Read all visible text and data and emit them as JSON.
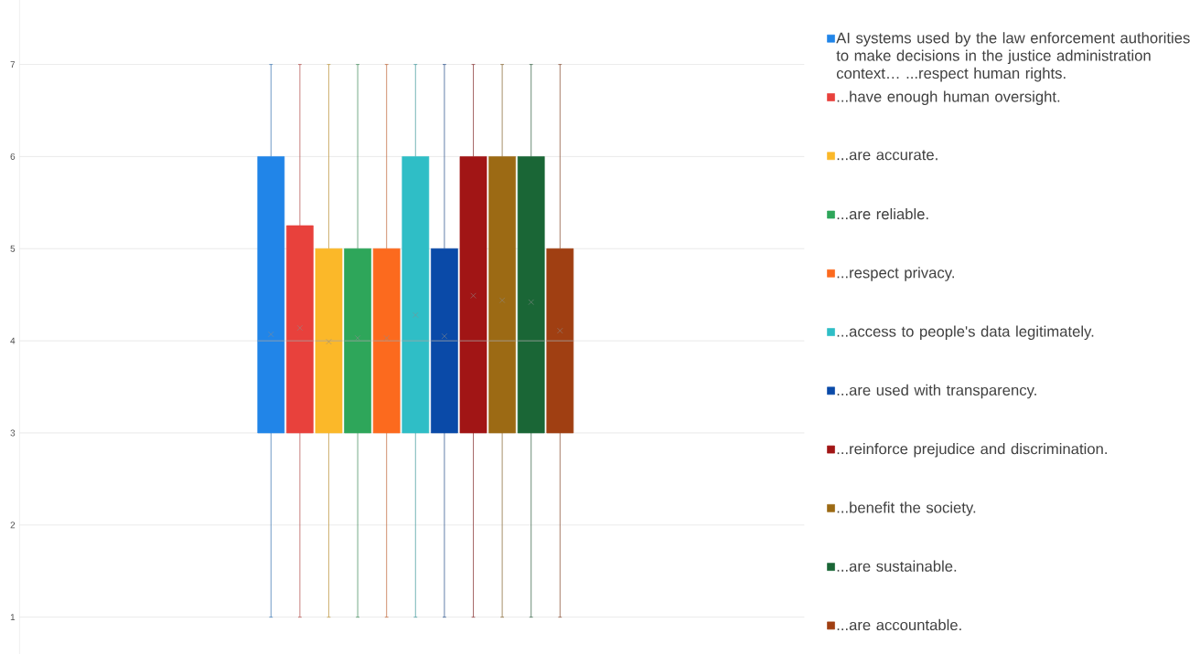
{
  "chart_data": {
    "type": "box",
    "categories": [
      null
    ],
    "series": [
      {
        "name": "AI systems used by the law enforcement authorities to make decisions in the justice administration context… ...respect human rights.",
        "color": "#2185e8",
        "boxes": [
          {
            "low": 1,
            "q1": 3,
            "median": 4,
            "q3": 6,
            "high": 7,
            "mean": 4.07
          }
        ]
      },
      {
        "name": "...have enough human oversight.",
        "color": "#e8413c",
        "boxes": [
          {
            "low": 1,
            "q1": 3,
            "median": 4,
            "q3": 5.25,
            "high": 7,
            "mean": 4.14
          }
        ]
      },
      {
        "name": "...are accurate.",
        "color": "#fbb829",
        "boxes": [
          {
            "low": 1,
            "q1": 3,
            "median": 4,
            "q3": 5,
            "high": 7,
            "mean": 3.99
          }
        ]
      },
      {
        "name": "...are reliable.",
        "color": "#2ea65a",
        "boxes": [
          {
            "low": 1,
            "q1": 3,
            "median": 4,
            "q3": 5,
            "high": 7,
            "mean": 4.03
          }
        ]
      },
      {
        "name": "...respect privacy.",
        "color": "#fc6a1e",
        "boxes": [
          {
            "low": 1,
            "q1": 3,
            "median": 4,
            "q3": 5,
            "high": 7,
            "mean": 4.03
          }
        ]
      },
      {
        "name": "...access to people's data legitimately.",
        "color": "#2fbec6",
        "boxes": [
          {
            "low": 1,
            "q1": 3,
            "median": 4,
            "q3": 6,
            "high": 7,
            "mean": 4.28
          }
        ]
      },
      {
        "name": "...are used with transparency.",
        "color": "#0a4aa8",
        "boxes": [
          {
            "low": 1,
            "q1": 3,
            "median": 4,
            "q3": 5,
            "high": 7,
            "mean": 4.05
          }
        ]
      },
      {
        "name": "...reinforce prejudice and discrimination.",
        "color": "#a11515",
        "boxes": [
          {
            "low": 1,
            "q1": 3,
            "median": 4,
            "q3": 6,
            "high": 7,
            "mean": 4.49
          }
        ]
      },
      {
        "name": "...benefit the society.",
        "color": "#9c6a14",
        "boxes": [
          {
            "low": 1,
            "q1": 3,
            "median": 4,
            "q3": 6,
            "high": 7,
            "mean": 4.44
          }
        ]
      },
      {
        "name": "...are sustainable.",
        "color": "#1a6636",
        "boxes": [
          {
            "low": 1,
            "q1": 3,
            "median": 4,
            "q3": 6,
            "high": 7,
            "mean": 4.42
          }
        ]
      },
      {
        "name": "...are accountable.",
        "color": "#a03f12",
        "boxes": [
          {
            "low": 1,
            "q1": 3,
            "median": 4,
            "q3": 5,
            "high": 7,
            "mean": 4.11
          }
        ]
      }
    ],
    "ylim": [
      0.6,
      7.7
    ],
    "yticks": [
      1,
      2,
      3,
      4,
      5,
      6,
      7
    ],
    "grid": "y",
    "legend": "right"
  }
}
